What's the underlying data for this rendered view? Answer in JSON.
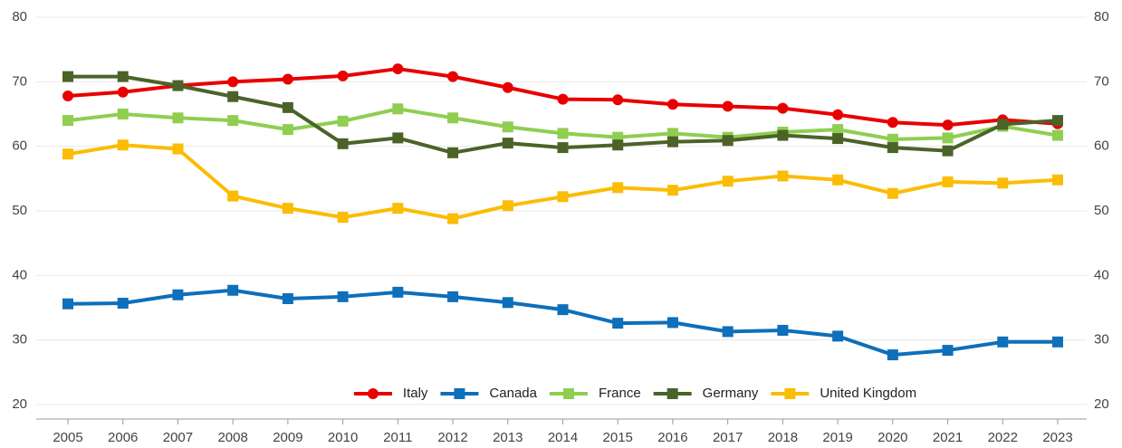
{
  "chart_data": {
    "type": "line",
    "categories": [
      "2005",
      "2006",
      "2007",
      "2008",
      "2009",
      "2010",
      "2011",
      "2012",
      "2013",
      "2014",
      "2015",
      "2016",
      "2017",
      "2018",
      "2019",
      "2020",
      "2021",
      "2022",
      "2023"
    ],
    "series": [
      {
        "name": "Italy",
        "color": "#e80000",
        "marker": "circle",
        "values": [
          67.8,
          68.4,
          69.4,
          70.0,
          70.4,
          70.9,
          72.0,
          70.8,
          69.1,
          67.3,
          67.2,
          66.5,
          66.2,
          65.9,
          64.9,
          63.7,
          63.3,
          64.1,
          63.5
        ]
      },
      {
        "name": "Canada",
        "color": "#0e6fba",
        "marker": "square",
        "values": [
          35.6,
          35.7,
          37.0,
          37.7,
          36.4,
          36.7,
          37.4,
          36.7,
          35.8,
          34.7,
          32.6,
          32.7,
          31.3,
          31.5,
          30.6,
          27.7,
          28.4,
          29.7,
          29.7
        ]
      },
      {
        "name": "France",
        "color": "#8fce50",
        "marker": "square",
        "values": [
          64.0,
          65.0,
          64.4,
          64.0,
          62.6,
          63.9,
          65.8,
          64.4,
          63.0,
          62.0,
          61.4,
          62.0,
          61.4,
          62.2,
          62.6,
          61.1,
          61.3,
          63.1,
          61.7
        ]
      },
      {
        "name": "Germany",
        "color": "#4b6328",
        "marker": "square",
        "values": [
          70.8,
          70.8,
          69.4,
          67.7,
          66.0,
          60.4,
          61.3,
          59.0,
          60.5,
          59.8,
          60.2,
          60.7,
          60.9,
          61.7,
          61.2,
          59.8,
          59.3,
          63.4,
          64.0
        ]
      },
      {
        "name": "United Kingdom",
        "color": "#fbbc04",
        "marker": "square",
        "values": [
          58.8,
          60.2,
          59.6,
          52.3,
          50.4,
          49.0,
          50.4,
          48.8,
          50.8,
          52.2,
          53.6,
          53.2,
          54.6,
          55.4,
          54.8,
          52.7,
          54.5,
          54.3,
          54.8
        ]
      }
    ],
    "ylim": [
      20,
      80
    ],
    "yticks": [
      20,
      30,
      40,
      50,
      60,
      70,
      80
    ],
    "grid": true,
    "legend": "bottom"
  }
}
